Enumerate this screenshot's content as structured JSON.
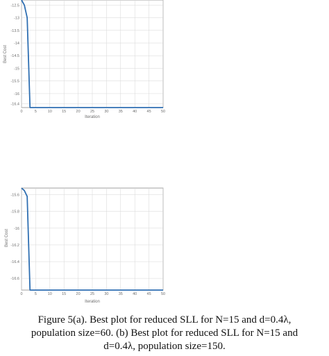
{
  "chart_data": [
    {
      "type": "line",
      "xlabel": "Iteration",
      "ylabel": "Best Cost",
      "xlim": [
        0,
        50
      ],
      "ylim": [
        -16.55,
        -12.3
      ],
      "x_ticks": [
        "0",
        "5",
        "10",
        "15",
        "20",
        "25",
        "30",
        "35",
        "40",
        "45",
        "50"
      ],
      "y_ticks": [
        {
          "value": -12.5,
          "label": "-12.5"
        },
        {
          "value": -13,
          "label": "-13"
        },
        {
          "value": -13.5,
          "label": "-13.5"
        },
        {
          "value": -14,
          "label": "-14"
        },
        {
          "value": -14.5,
          "label": "-14.5"
        },
        {
          "value": -15,
          "label": "-15"
        },
        {
          "value": -15.5,
          "label": "-15.5"
        },
        {
          "value": -16,
          "label": "-16"
        },
        {
          "value": -16.4,
          "label": "-16.4"
        }
      ],
      "grid": true,
      "series": [
        {
          "x": [
            0,
            1,
            2,
            3,
            4,
            50
          ],
          "y": [
            -12.3,
            -12.5,
            -13,
            -16.55,
            -16.55,
            -16.55
          ]
        }
      ]
    },
    {
      "type": "line",
      "xlabel": "Iteration",
      "ylabel": "Best Cost",
      "xlim": [
        0,
        50
      ],
      "ylim": [
        -16.74,
        -15.52
      ],
      "x_ticks": [
        "0",
        "5",
        "10",
        "15",
        "20",
        "25",
        "30",
        "35",
        "40",
        "45",
        "50"
      ],
      "y_ticks": [
        {
          "value": -15.6,
          "label": "-15.6"
        },
        {
          "value": -15.8,
          "label": "-15.8"
        },
        {
          "value": -16,
          "label": "-16"
        },
        {
          "value": -16.2,
          "label": "-16.2"
        },
        {
          "value": -16.4,
          "label": "-16.4"
        },
        {
          "value": -16.6,
          "label": "-16.6"
        }
      ],
      "grid": true,
      "series": [
        {
          "x": [
            0,
            1,
            2,
            3,
            50
          ],
          "y": [
            -15.52,
            -15.55,
            -15.62,
            -16.74,
            -16.74
          ]
        }
      ]
    }
  ],
  "caption": {
    "line1": "Figure 5(a). Best plot for reduced SLL for N=15 and d=0.4λ,",
    "line2": "population size=60. (b) Best plot for reduced SLL for N=15 and",
    "line3": "d=0.4λ, population size=150."
  },
  "colors": {
    "line": "#2f6fb2",
    "grid": "#d6d6d6",
    "axis": "#8a8a8a"
  }
}
